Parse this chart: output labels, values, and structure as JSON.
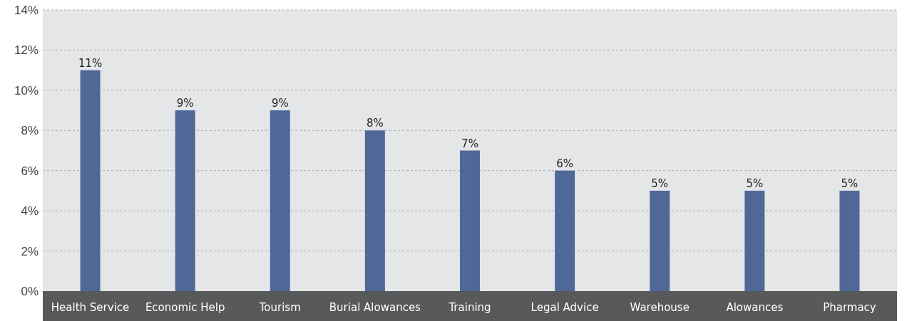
{
  "chart_data": {
    "type": "bar",
    "categories": [
      "Health Service",
      "Economic Help",
      "Tourism",
      "Burial Alowances",
      "Training",
      "Legal Advice",
      "Warehouse",
      "Alowances",
      "Pharmacy"
    ],
    "values": [
      11,
      9,
      9,
      8,
      7,
      6,
      5,
      5,
      5
    ],
    "value_labels": [
      "11%",
      "9%",
      "9%",
      "8%",
      "7%",
      "6%",
      "5%",
      "5%",
      "5%"
    ],
    "color": "#4f6897",
    "ylim": [
      0,
      14
    ],
    "yticks": [
      {
        "value": 0,
        "label": "0%"
      },
      {
        "value": 2,
        "label": "2%"
      },
      {
        "value": 4,
        "label": "4%"
      },
      {
        "value": 6,
        "label": "6%"
      },
      {
        "value": 8,
        "label": "8%"
      },
      {
        "value": 10,
        "label": "10%"
      },
      {
        "value": 12,
        "label": "12%"
      },
      {
        "value": 14,
        "label": "14%"
      }
    ],
    "grid": "y"
  }
}
